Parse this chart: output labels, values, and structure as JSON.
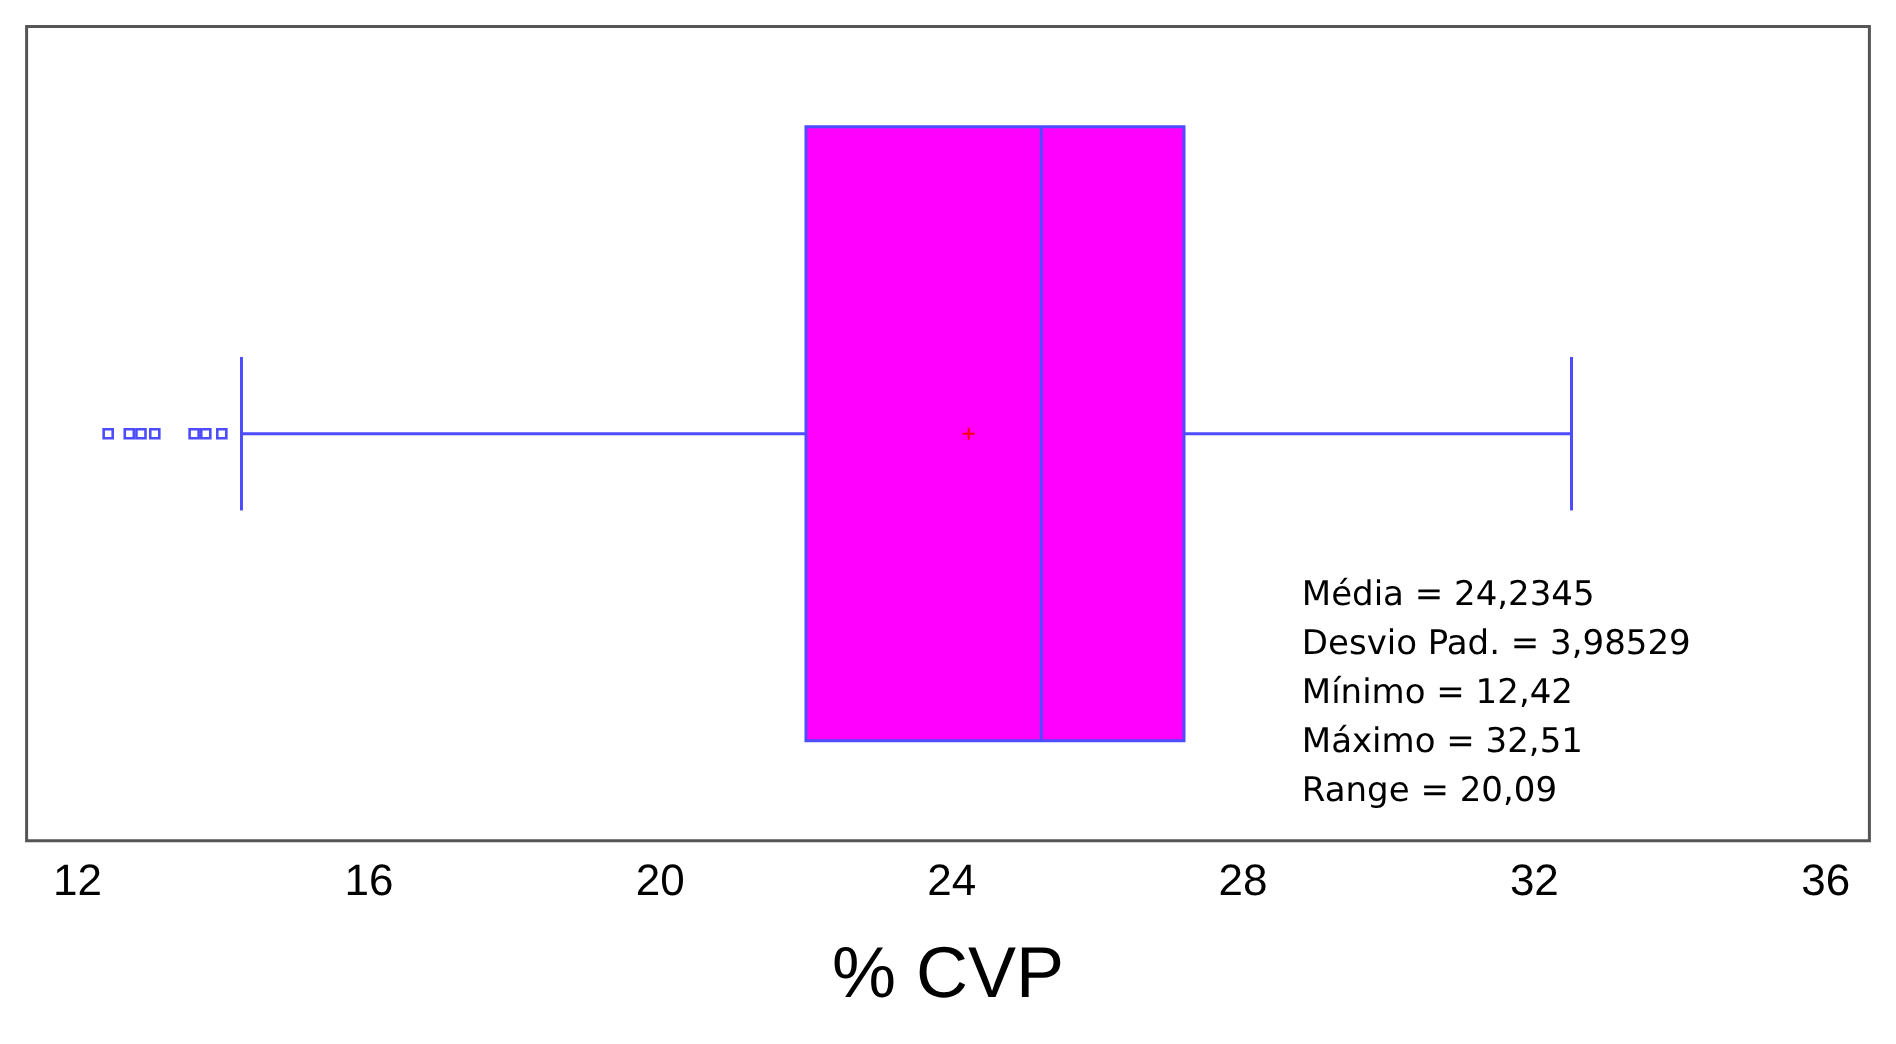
{
  "chart_data": {
    "type": "box",
    "categories": [
      null
    ],
    "orientation": "horizontal",
    "boxes": [
      {
        "low": 14.25,
        "q1": 22.0,
        "median": 25.23,
        "q3": 27.19,
        "high": 32.51,
        "mean": 24.2345,
        "outliers": [
          12.42,
          12.71,
          12.87,
          13.06,
          13.6,
          13.76,
          13.98
        ]
      }
    ],
    "color": "#ff00ff",
    "xlabel": "% CVP",
    "xlim": [
      11.3,
      36.6
    ],
    "xticks": [
      12,
      16,
      20,
      24,
      28,
      32,
      36
    ],
    "grid": false,
    "legend": false,
    "annotations": [
      "Média = 24,2345",
      "Desvio Pad. = 3,98529",
      "Mínimo = 12,42",
      "Máximo = 32,51",
      "Range = 20,09"
    ]
  }
}
